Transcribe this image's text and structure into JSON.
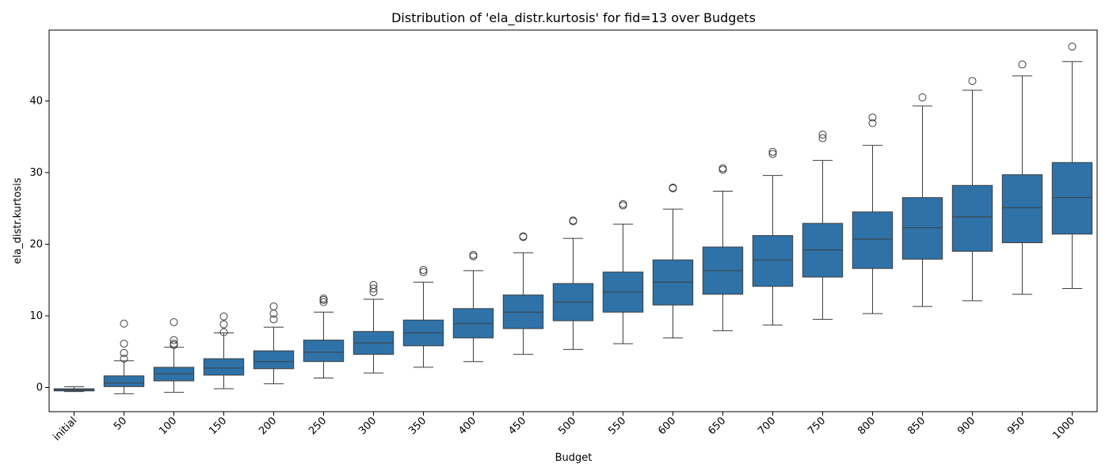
{
  "chart_data": {
    "type": "box",
    "title": "Distribution of 'ela_distr.kurtosis' for fid=13 over Budgets",
    "xlabel": "Budget",
    "ylabel": "ela_distr.kurtosis",
    "categories": [
      "initial",
      "50",
      "100",
      "150",
      "200",
      "250",
      "300",
      "350",
      "400",
      "450",
      "500",
      "550",
      "600",
      "650",
      "700",
      "750",
      "800",
      "850",
      "900",
      "950",
      "1000"
    ],
    "boxes": [
      {
        "category": "initial",
        "whisker_low": -0.6,
        "q1": -0.5,
        "median": -0.35,
        "q3": -0.2,
        "whisker_high": 0.1,
        "outliers": []
      },
      {
        "category": "50",
        "whisker_low": -0.9,
        "q1": 0.1,
        "median": 0.6,
        "q3": 1.6,
        "whisker_high": 3.7,
        "outliers": [
          4.0,
          4.8,
          6.1,
          8.9
        ]
      },
      {
        "category": "100",
        "whisker_low": -0.7,
        "q1": 0.9,
        "median": 1.9,
        "q3": 2.8,
        "whisker_high": 5.6,
        "outliers": [
          5.9,
          6.1,
          6.6,
          9.1
        ]
      },
      {
        "category": "150",
        "whisker_low": -0.2,
        "q1": 1.7,
        "median": 2.7,
        "q3": 4.0,
        "whisker_high": 7.6,
        "outliers": [
          7.7,
          8.8,
          9.9
        ]
      },
      {
        "category": "200",
        "whisker_low": 0.5,
        "q1": 2.6,
        "median": 3.6,
        "q3": 5.1,
        "whisker_high": 8.4,
        "outliers": [
          9.5,
          10.3,
          11.3
        ]
      },
      {
        "category": "250",
        "whisker_low": 1.3,
        "q1": 3.6,
        "median": 4.9,
        "q3": 6.6,
        "whisker_high": 10.5,
        "outliers": [
          11.9,
          12.2,
          12.4
        ]
      },
      {
        "category": "300",
        "whisker_low": 2.0,
        "q1": 4.6,
        "median": 6.2,
        "q3": 7.8,
        "whisker_high": 12.3,
        "outliers": [
          13.3,
          13.8,
          14.3
        ]
      },
      {
        "category": "350",
        "whisker_low": 2.8,
        "q1": 5.8,
        "median": 7.6,
        "q3": 9.4,
        "whisker_high": 14.7,
        "outliers": [
          16.1,
          16.4
        ]
      },
      {
        "category": "400",
        "whisker_low": 3.6,
        "q1": 6.9,
        "median": 8.9,
        "q3": 11.0,
        "whisker_high": 16.3,
        "outliers": [
          18.3,
          18.5
        ]
      },
      {
        "category": "450",
        "whisker_low": 4.6,
        "q1": 8.2,
        "median": 10.5,
        "q3": 12.9,
        "whisker_high": 18.8,
        "outliers": [
          21.0,
          21.1
        ]
      },
      {
        "category": "500",
        "whisker_low": 5.3,
        "q1": 9.3,
        "median": 11.9,
        "q3": 14.5,
        "whisker_high": 20.8,
        "outliers": [
          23.2,
          23.3
        ]
      },
      {
        "category": "550",
        "whisker_low": 6.1,
        "q1": 10.5,
        "median": 13.3,
        "q3": 16.1,
        "whisker_high": 22.8,
        "outliers": [
          25.4,
          25.6
        ]
      },
      {
        "category": "600",
        "whisker_low": 6.9,
        "q1": 11.5,
        "median": 14.7,
        "q3": 17.8,
        "whisker_high": 24.9,
        "outliers": [
          27.8,
          27.9
        ]
      },
      {
        "category": "650",
        "whisker_low": 7.9,
        "q1": 13.0,
        "median": 16.3,
        "q3": 19.6,
        "whisker_high": 27.4,
        "outliers": [
          30.4,
          30.6
        ]
      },
      {
        "category": "700",
        "whisker_low": 8.7,
        "q1": 14.1,
        "median": 17.8,
        "q3": 21.2,
        "whisker_high": 29.6,
        "outliers": [
          32.6,
          32.9
        ]
      },
      {
        "category": "750",
        "whisker_low": 9.5,
        "q1": 15.4,
        "median": 19.2,
        "q3": 22.9,
        "whisker_high": 31.7,
        "outliers": [
          34.8,
          35.3
        ]
      },
      {
        "category": "800",
        "whisker_low": 10.3,
        "q1": 16.6,
        "median": 20.7,
        "q3": 24.5,
        "whisker_high": 33.8,
        "outliers": [
          36.9,
          37.7
        ]
      },
      {
        "category": "850",
        "whisker_low": 11.3,
        "q1": 17.9,
        "median": 22.3,
        "q3": 26.5,
        "whisker_high": 39.3,
        "outliers": [
          40.5
        ]
      },
      {
        "category": "900",
        "whisker_low": 12.1,
        "q1": 19.0,
        "median": 23.8,
        "q3": 28.2,
        "whisker_high": 41.5,
        "outliers": [
          42.8
        ]
      },
      {
        "category": "950",
        "whisker_low": 13.0,
        "q1": 20.2,
        "median": 25.1,
        "q3": 29.7,
        "whisker_high": 43.5,
        "outliers": [
          45.1
        ]
      },
      {
        "category": "1000",
        "whisker_low": 13.8,
        "q1": 21.4,
        "median": 26.5,
        "q3": 31.4,
        "whisker_high": 45.5,
        "outliers": [
          47.6
        ]
      }
    ],
    "ylim": [
      -3.4,
      49.9
    ],
    "yticks": [
      0,
      10,
      20,
      30,
      40
    ],
    "grid": false,
    "legend": "none",
    "box_color": "#2e72a8",
    "line_color": "#3f3f3f"
  }
}
